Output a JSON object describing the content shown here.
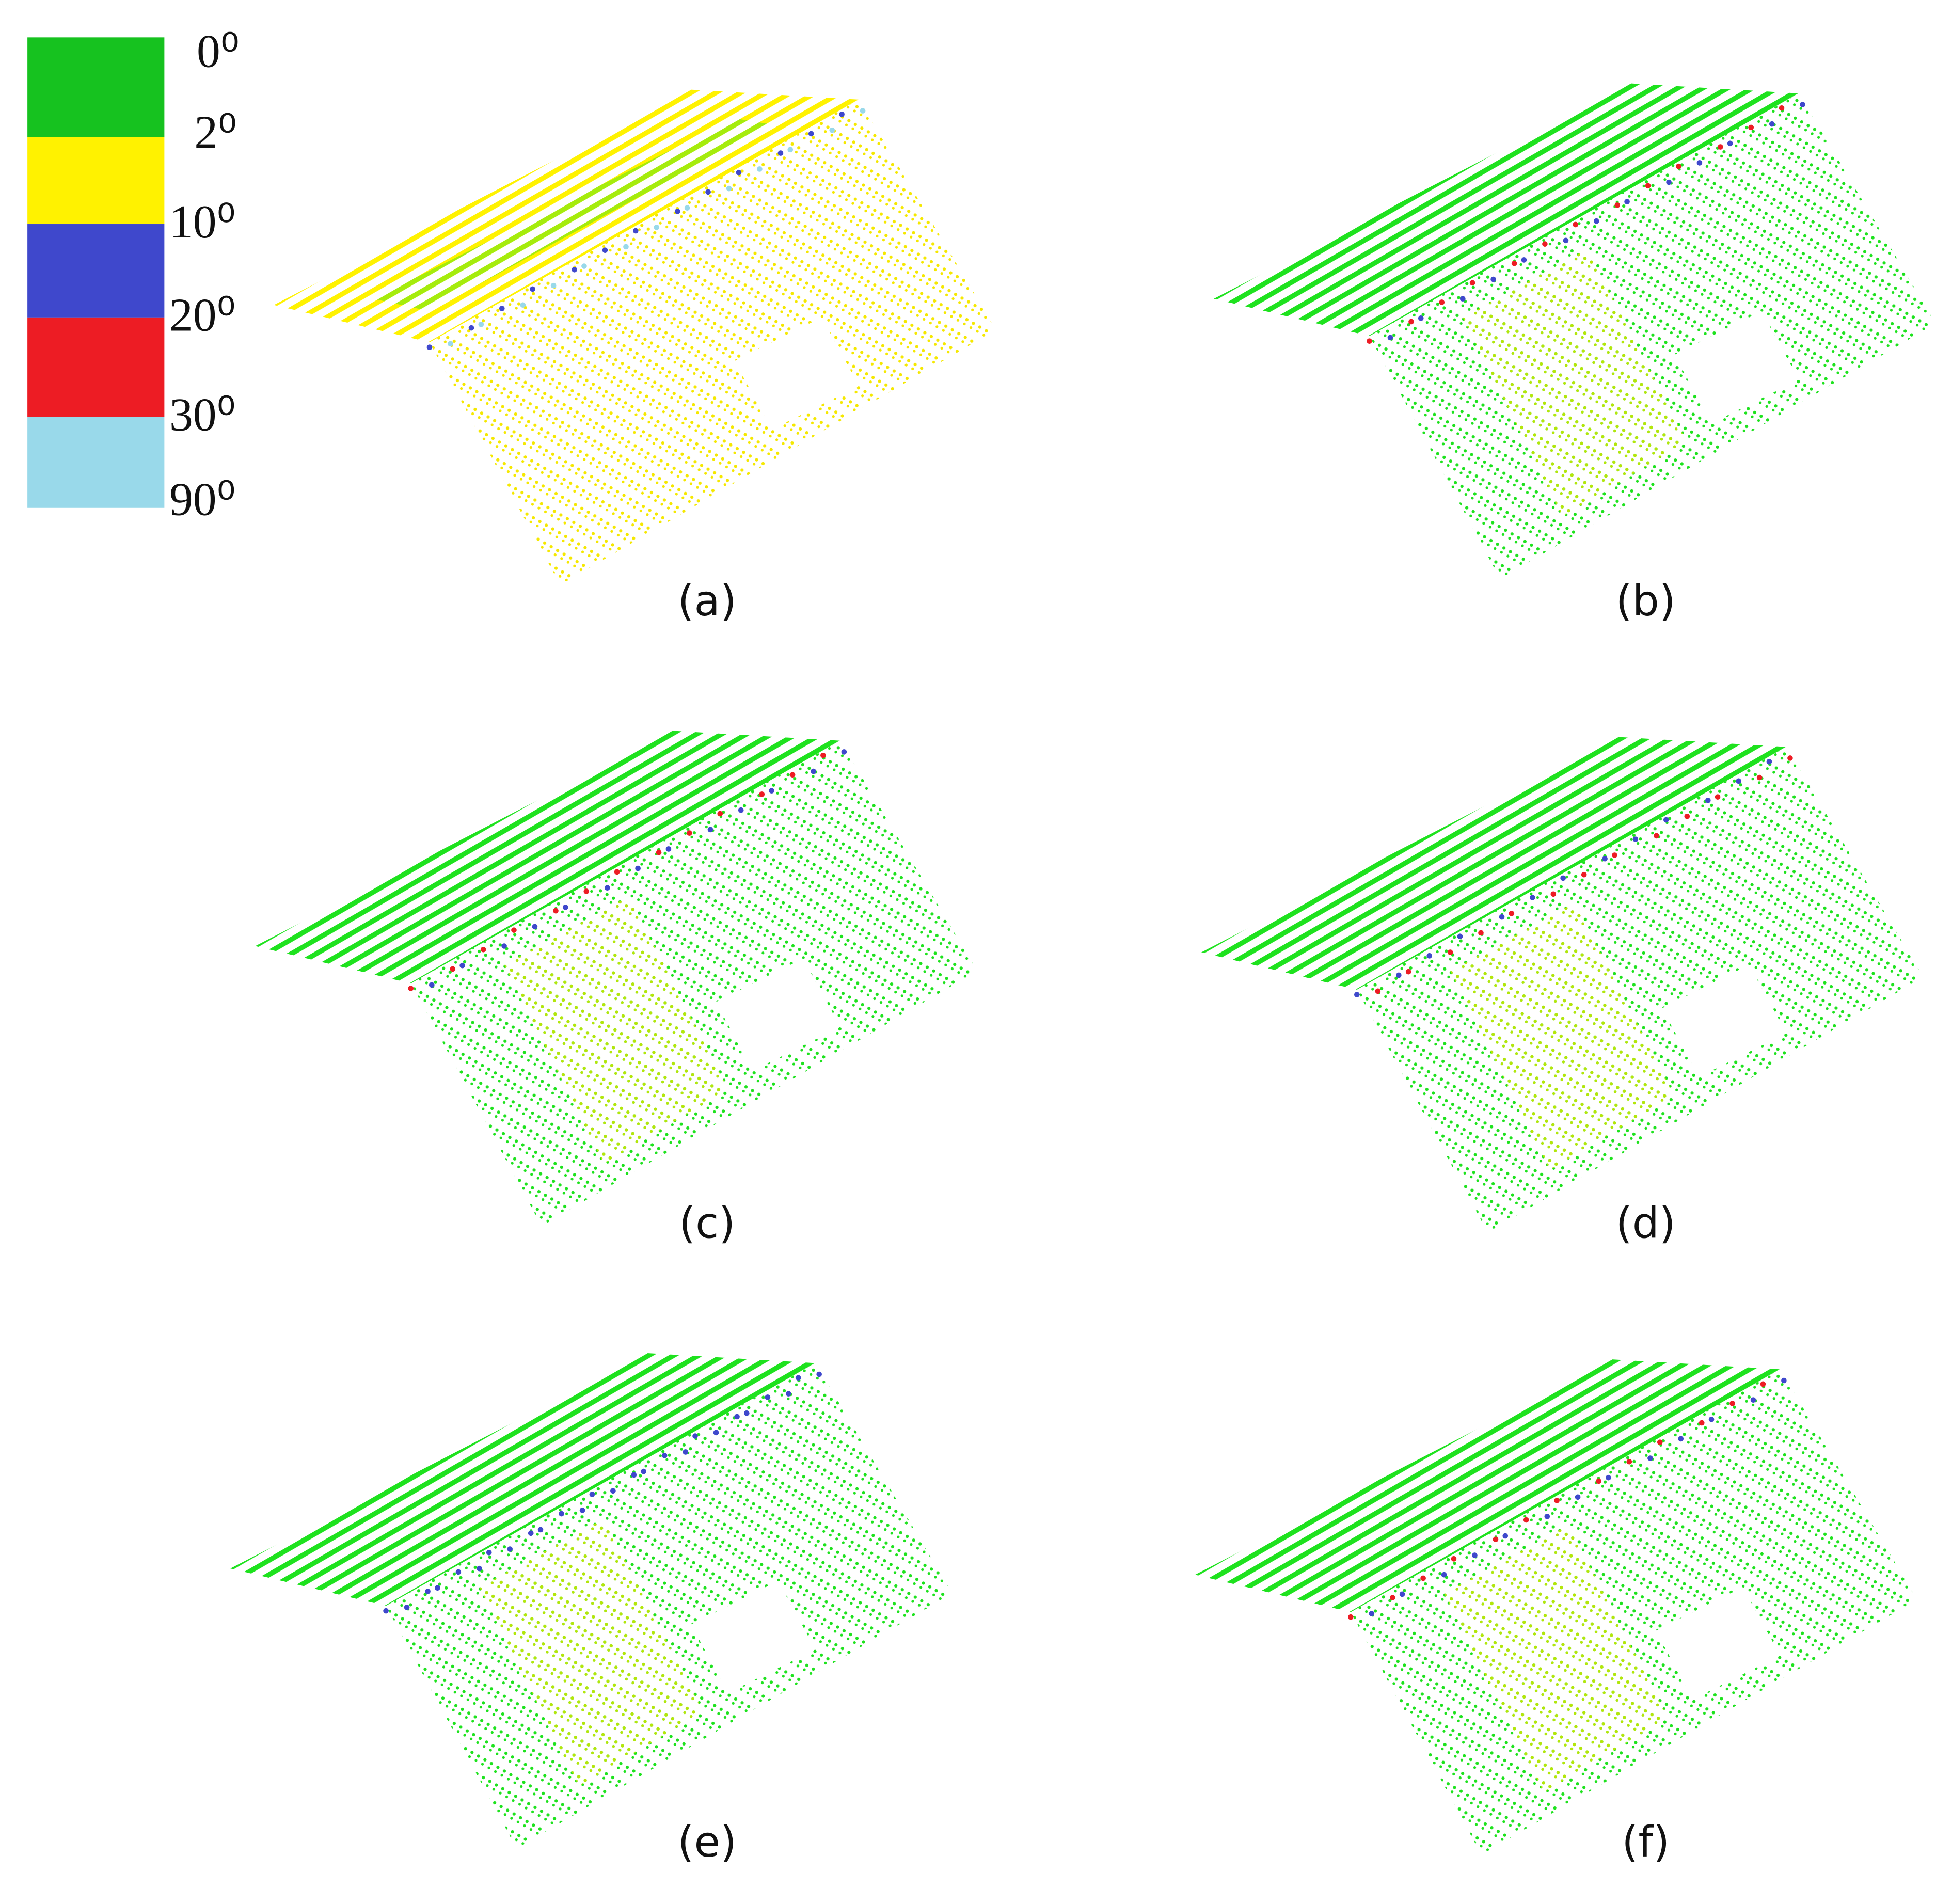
{
  "legend": [
    {
      "label": "0⁰",
      "color": "#16c21f"
    },
    {
      "label": "2⁰",
      "color": "#fff200"
    },
    {
      "label": "10⁰",
      "color": "#3f48cc"
    },
    {
      "label": "20⁰",
      "color": "#ed1c24"
    },
    {
      "label": "30⁰",
      "color": "#99d9ea"
    },
    {
      "label": "90⁰"
    }
  ],
  "panels": [
    {
      "label": "(a)"
    },
    {
      "label": "(b)"
    },
    {
      "label": "(c)"
    },
    {
      "label": "(d)"
    },
    {
      "label": "(e)"
    },
    {
      "label": "(f)"
    }
  ]
}
